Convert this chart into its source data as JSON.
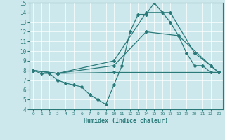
{
  "xlabel": "Humidex (Indice chaleur)",
  "xlim": [
    -0.5,
    23.5
  ],
  "ylim": [
    4,
    15
  ],
  "xticks": [
    0,
    1,
    2,
    3,
    4,
    5,
    6,
    7,
    8,
    9,
    10,
    11,
    12,
    13,
    14,
    15,
    16,
    17,
    18,
    19,
    20,
    21,
    22,
    23
  ],
  "yticks": [
    4,
    5,
    6,
    7,
    8,
    9,
    10,
    11,
    12,
    13,
    14,
    15
  ],
  "line_color": "#2a7a7a",
  "bg_color": "#cce8ec",
  "lines": [
    {
      "x": [
        0,
        1,
        2,
        3,
        4,
        5,
        6,
        7,
        8,
        9,
        10,
        11,
        12,
        13,
        14,
        15,
        16,
        17,
        18,
        19,
        20,
        21,
        22,
        23
      ],
      "y": [
        8.0,
        7.7,
        7.7,
        7.0,
        6.7,
        6.5,
        6.3,
        5.5,
        5.0,
        4.5,
        6.5,
        8.5,
        12.0,
        13.8,
        13.8,
        15.0,
        14.0,
        13.0,
        11.6,
        9.8,
        8.5,
        8.5,
        7.8,
        7.8
      ]
    },
    {
      "x": [
        0,
        3,
        10,
        14,
        17,
        20,
        22,
        23
      ],
      "y": [
        8.0,
        7.7,
        9.0,
        14.0,
        14.0,
        9.8,
        8.5,
        7.8
      ]
    },
    {
      "x": [
        0,
        3,
        10,
        14,
        18,
        22,
        23
      ],
      "y": [
        8.0,
        7.7,
        8.5,
        12.0,
        11.6,
        8.5,
        7.8
      ]
    },
    {
      "x": [
        0,
        3,
        10,
        23
      ],
      "y": [
        8.0,
        7.7,
        7.8,
        7.8
      ]
    }
  ]
}
